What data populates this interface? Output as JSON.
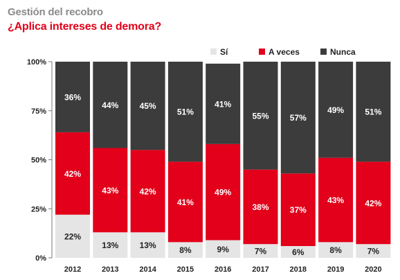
{
  "header": {
    "title": "Gestión del recobro",
    "subtitle": "¿Aplica intereses de demora?"
  },
  "colors": {
    "si": "#e5e5e5",
    "a_veces": "#e2001a",
    "nunca": "#3c3c3c",
    "title": "#8a8a8a",
    "subtitle": "#e2001a"
  },
  "chart_data": {
    "type": "bar",
    "stacked": true,
    "categories": [
      "2012",
      "2013",
      "2014",
      "2015",
      "2016",
      "2017",
      "2018",
      "2019",
      "2020"
    ],
    "series": [
      {
        "name": "Sí",
        "values": [
          22,
          13,
          13,
          8,
          9,
          7,
          6,
          8,
          7
        ],
        "labels": [
          "22%",
          "13%",
          "13%",
          "8%",
          "9%",
          "7%",
          "6%",
          "8%",
          "7%"
        ]
      },
      {
        "name": "A veces",
        "values": [
          42,
          43,
          42,
          41,
          49,
          38,
          37,
          43,
          42
        ],
        "labels": [
          "42%",
          "43%",
          "42%",
          "41%",
          "49%",
          "38%",
          "37%",
          "43%",
          "42%"
        ]
      },
      {
        "name": "Nunca",
        "values": [
          36,
          44,
          45,
          51,
          41,
          55,
          57,
          49,
          51
        ],
        "labels": [
          "36%",
          "44%",
          "45%",
          "51%",
          "41%",
          "55%",
          "57%",
          "49%",
          "51%"
        ]
      }
    ],
    "y_ticks": [
      "0%",
      "25%",
      "50%",
      "75%",
      "100%"
    ],
    "ylim": [
      0,
      100
    ],
    "legend": "top-right",
    "grid": false
  }
}
